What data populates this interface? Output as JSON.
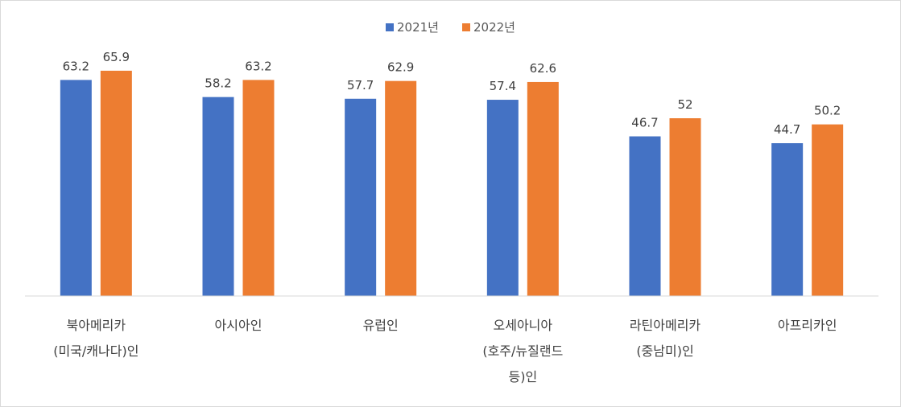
{
  "chart_data": {
    "type": "bar",
    "categories": [
      [
        "북아메리카",
        "(미국/캐나다)인"
      ],
      [
        "아시아인"
      ],
      [
        "유럽인"
      ],
      [
        "오세아니아",
        "(호주/뉴질랜드",
        "등)인"
      ],
      [
        "라틴아메리카",
        "(중남미)인"
      ],
      [
        "아프리카인"
      ]
    ],
    "series": [
      {
        "name": "2021년",
        "color": "#4472c4",
        "values": [
          63.2,
          58.2,
          57.7,
          57.4,
          46.7,
          44.7
        ],
        "labels": [
          "63.2",
          "58.2",
          "57.7",
          "57.4",
          "46.7",
          "44.7"
        ]
      },
      {
        "name": "2022년",
        "color": "#ed7d31",
        "values": [
          65.9,
          63.2,
          62.9,
          62.6,
          52,
          50.2
        ],
        "labels": [
          "65.9",
          "63.2",
          "62.9",
          "62.6",
          "52",
          "50.2"
        ]
      }
    ],
    "ylim": [
      0,
      75
    ],
    "legend_position": "top-center",
    "grid": false
  }
}
